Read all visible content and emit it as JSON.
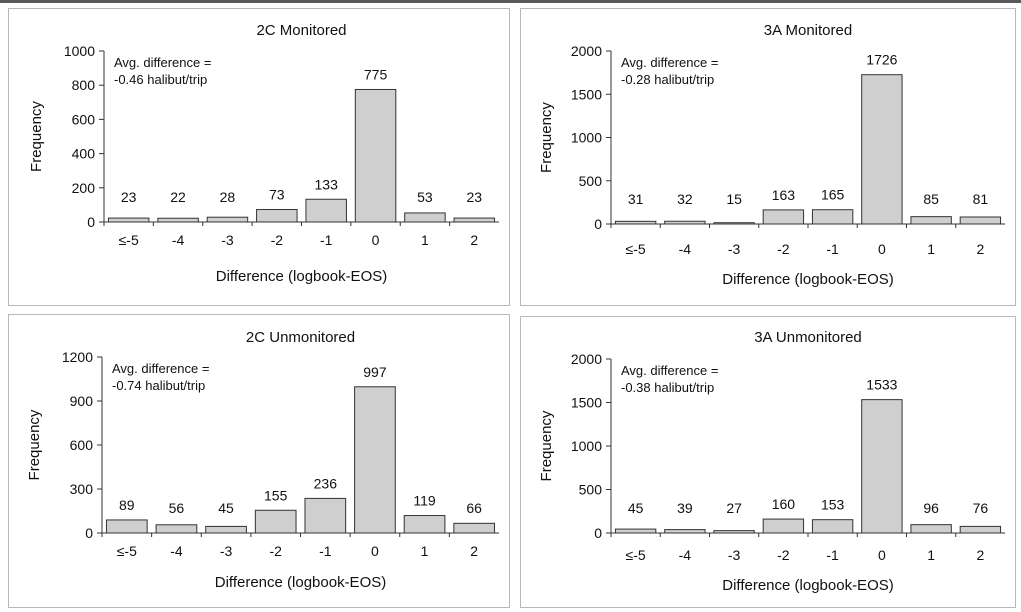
{
  "chart_data": [
    {
      "type": "bar",
      "title": "2C Monitored",
      "xlabel": "Difference (logbook-EOS)",
      "ylabel": "Frequency",
      "categories": [
        "≤-5",
        "-4",
        "-3",
        "-2",
        "-1",
        "0",
        "1",
        "2"
      ],
      "values": [
        23,
        22,
        28,
        73,
        133,
        775,
        53,
        23
      ],
      "ylim": [
        0,
        1000
      ],
      "yticks": [
        0,
        200,
        400,
        600,
        800,
        1000
      ],
      "annotation": [
        "Avg. difference =",
        "-0.46 halibut/trip"
      ],
      "grid": false,
      "legend": "none"
    },
    {
      "type": "bar",
      "title": "3A Monitored",
      "xlabel": "Difference (logbook-EOS)",
      "ylabel": "Frequency",
      "categories": [
        "≤-5",
        "-4",
        "-3",
        "-2",
        "-1",
        "0",
        "1",
        "2"
      ],
      "values": [
        31,
        32,
        15,
        163,
        165,
        1726,
        85,
        81
      ],
      "ylim": [
        0,
        2000
      ],
      "yticks": [
        0,
        500,
        1000,
        1500,
        2000
      ],
      "annotation": [
        "Avg. difference =",
        "-0.28 halibut/trip"
      ],
      "grid": false,
      "legend": "none"
    },
    {
      "type": "bar",
      "title": "2C Unmonitored",
      "xlabel": "Difference (logbook-EOS)",
      "ylabel": "Frequency",
      "categories": [
        "≤-5",
        "-4",
        "-3",
        "-2",
        "-1",
        "0",
        "1",
        "2"
      ],
      "values": [
        89,
        56,
        45,
        155,
        236,
        997,
        119,
        66
      ],
      "ylim": [
        0,
        1200
      ],
      "yticks": [
        0,
        300,
        600,
        900,
        1200
      ],
      "annotation": [
        "Avg. difference =",
        "-0.74 halibut/trip"
      ],
      "grid": false,
      "legend": "none"
    },
    {
      "type": "bar",
      "title": "3A Unmonitored",
      "xlabel": "Difference (logbook-EOS)",
      "ylabel": "Frequency",
      "categories": [
        "≤-5",
        "-4",
        "-3",
        "-2",
        "-1",
        "0",
        "1",
        "2"
      ],
      "values": [
        45,
        39,
        27,
        160,
        153,
        1533,
        96,
        76
      ],
      "ylim": [
        0,
        2000
      ],
      "yticks": [
        0,
        500,
        1000,
        1500,
        2000
      ],
      "annotation": [
        "Avg. difference =",
        "-0.38 halibut/trip"
      ],
      "grid": false,
      "legend": "none"
    }
  ]
}
